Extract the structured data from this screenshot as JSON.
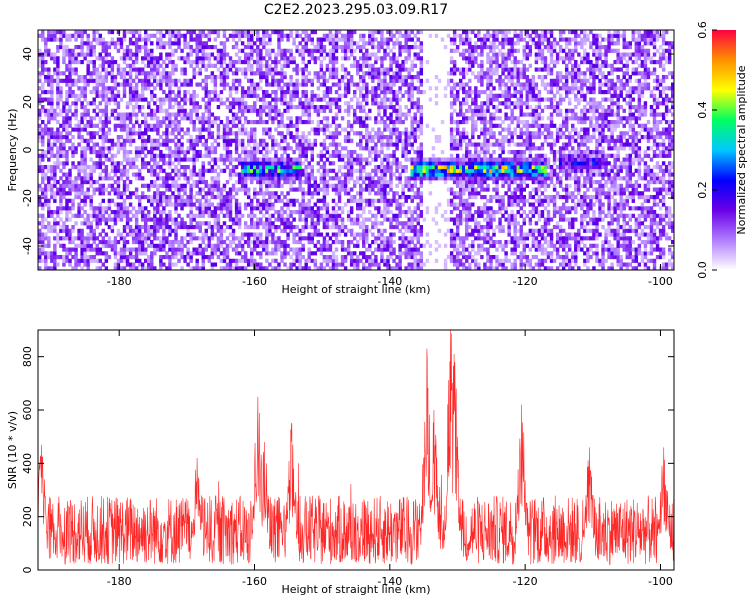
{
  "figure": {
    "title": "C2E2.2023.295.03.09.R17"
  },
  "chart_data": [
    {
      "type": "heatmap",
      "xlabel": "Height of straight line (km)",
      "ylabel": "Frequency (Hz)",
      "xlim": [
        -192,
        -98
      ],
      "ylim": [
        -50,
        50
      ],
      "xticks": [
        -180,
        -160,
        -140,
        -120,
        -100
      ],
      "yticks": [
        -40,
        -20,
        0,
        20,
        40
      ],
      "colorbar": {
        "label": "Normalized spectral amplitude",
        "range": [
          0.0,
          0.6
        ],
        "ticks": [
          0.0,
          0.2,
          0.4,
          0.6
        ],
        "colors": [
          "#ffffff",
          "#b07cff",
          "#6a00e6",
          "#0000ff",
          "#00c8ff",
          "#00ff60",
          "#ffff00",
          "#ff9000",
          "#ff0040"
        ]
      },
      "features": [
        {
          "x_range": [
            -161,
            -154
          ],
          "y_center": -8,
          "peak": 0.45
        },
        {
          "x_range": [
            -136,
            -118
          ],
          "y_center": -8,
          "peak": 0.55
        },
        {
          "x_range": [
            -114,
            -109
          ],
          "y_center": -5,
          "peak": 0.25
        }
      ],
      "gaps": [
        {
          "x_range": [
            -135,
            -131
          ]
        }
      ]
    },
    {
      "type": "line",
      "xlabel": "Height of straight line (km)",
      "ylabel": "SNR (10 * v/v)",
      "xlim": [
        -192,
        -98
      ],
      "ylim": [
        0,
        900
      ],
      "xticks": [
        -180,
        -160,
        -140,
        -120,
        -100
      ],
      "yticks": [
        0,
        200,
        400,
        600,
        800
      ],
      "color": "#ff0000",
      "baseline": {
        "min": 20,
        "max": 280
      },
      "peaks": [
        {
          "x": -191.5,
          "y": 470
        },
        {
          "x": -168.5,
          "y": 420
        },
        {
          "x": -159.5,
          "y": 650
        },
        {
          "x": -158.5,
          "y": 480
        },
        {
          "x": -154.5,
          "y": 550
        },
        {
          "x": -134.5,
          "y": 830
        },
        {
          "x": -133.5,
          "y": 600
        },
        {
          "x": -131,
          "y": 900
        },
        {
          "x": -130.5,
          "y": 810
        },
        {
          "x": -120.5,
          "y": 620
        },
        {
          "x": -110.5,
          "y": 460
        },
        {
          "x": -99.5,
          "y": 460
        }
      ]
    }
  ]
}
